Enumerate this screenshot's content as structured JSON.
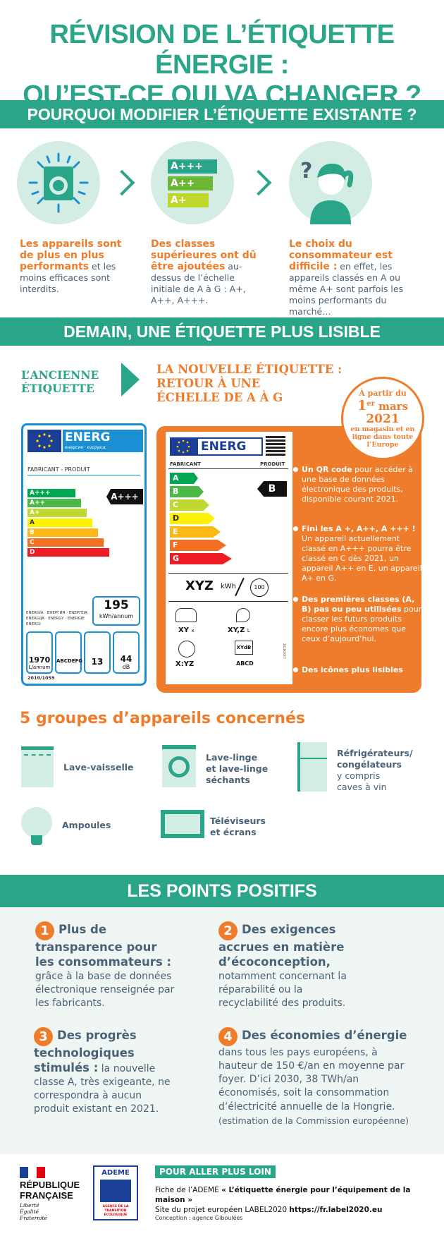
{
  "title": {
    "line1": "RÉVISION DE L’ÉTIQUETTE ÉNERGIE :",
    "line2": "QU’EST-CE QUI VA CHANGER ?"
  },
  "section1": {
    "heading": "POURQUOI MODIFIER L’ÉTIQUETTE EXISTANTE ?",
    "col1": {
      "strong": "Les appareils sont de plus en plus performants",
      "text": " et les moins efficaces sont interdits."
    },
    "col2": {
      "strong": "Des classes supérieures ont dû être ajoutées",
      "text": " au-dessus de l’échelle initiale de A à G : A+, A++, A+++."
    },
    "col3": {
      "strong": "Le choix du consommateur est difficile :",
      "text": " en effet, les appareils classés en A ou même A+ sont parfois les moins performants du marché…"
    },
    "classes": [
      "A+++",
      "A++",
      "A+"
    ]
  },
  "section2": {
    "heading": "DEMAIN, UNE ÉTIQUETTE PLUS LISIBLE",
    "old_label": {
      "l1": "L’ANCIENNE",
      "l2": "ÉTIQUETTE"
    },
    "new_label": {
      "l1": "LA NOUVELLE ÉTIQUETTE :",
      "l2": "RETOUR À UNE",
      "l3": "ÉCHELLE DE A À G"
    },
    "badge": {
      "l1": "À partir du",
      "day": "1",
      "sup": "er",
      "month": "mars",
      "year": "2021",
      "l3": "en magasin et en",
      "l4": "ligne dans toute",
      "l5": "l’Europe"
    },
    "old": {
      "energ": "ENERG",
      "subtitle": "енергия · ενεργεια",
      "lang": [
        "Y",
        "IJA",
        "IE",
        "IA"
      ],
      "maker": "FABRICANT - PRODUIT",
      "classes": [
        "A+++",
        "A++",
        "A+",
        "A",
        "B",
        "C",
        "D"
      ],
      "rating": "A+++",
      "langs": "ENERGIA · ЕНЕРГИЯ · ΕΝΕΡΓΕΙΑ ENERGIJA · ENERGY · ENERGIE ENERGI",
      "kwh": "195",
      "kwh_unit": "kWh/annum",
      "icons": [
        {
          "v": "1970",
          "u": "L/annum"
        },
        {
          "v": "ABCDEFG",
          "u": ""
        },
        {
          "v": "13",
          "u": ""
        },
        {
          "v": "44",
          "u": "dB"
        }
      ],
      "reg": "2010/1059"
    },
    "new": {
      "energ": "ENERG",
      "maker": "FABRICANT",
      "product": "PRODUIT",
      "classes": [
        "A",
        "B",
        "C",
        "D",
        "E",
        "F",
        "G"
      ],
      "rating": "B",
      "kwh": "XYZ",
      "kwh_unit": "kWh",
      "cycle": "100",
      "icons": [
        "XY",
        "XY,Z",
        "X:YZ",
        "ABCD"
      ],
      "icon_units": [
        "x",
        "L",
        "",
        "dB"
      ],
      "reg": "2019/2017"
    },
    "bullets": [
      {
        "strong": "Un QR code",
        "text": " pour accéder à une base de données électronique des produits, disponible courant 2021."
      },
      {
        "strong": "Fini les A +, A++, A +++ !",
        "text": " Un appareil actuellement classé en A+++ pourra être classé en C dès 2021, un appareil A++ en E, un appareil A+ en G."
      },
      {
        "strong": "Des premières classes (A, B) pas ou peu utilisées",
        "text": " pour classer les futurs produits encore plus économes que ceux d’aujourd’hui."
      },
      {
        "strong": "Des icônes plus lisibles",
        "text": ""
      }
    ]
  },
  "section3": {
    "heading": "5 groupes d’appareils concernés",
    "g1": "Lave-vaisselle",
    "g2a": "Lave-linge",
    "g2b": "et lave-linge",
    "g2c": "séchants",
    "g3a": "Réfrigérateurs/",
    "g3b": "congélateurs",
    "g3c": "y compris",
    "g3d": "caves à vin",
    "g4": "Ampoules",
    "g5a": "Téléviseurs",
    "g5b": "et écrans"
  },
  "section4": {
    "heading": "LES POINTS POSITIFS",
    "p1": {
      "n": "1",
      "strong": "Plus de transparence pour les consommateurs :",
      "text": " grâce à la base de données électronique renseignée par les fabricants."
    },
    "p2": {
      "n": "2",
      "strong": "Des exigences accrues en matière d’écoconception,",
      "text": " notamment concernant la réparabilité  ou la recyclabilité des produits."
    },
    "p3": {
      "n": "3",
      "strong": "Des progrès technologiques stimulés :",
      "text": " la nouvelle classe A, très exigeante, ne correspondra à aucun produit existant en 2021."
    },
    "p4": {
      "n": "4",
      "strong": "Des économies d’énergie",
      "text": " dans tous les pays européens, à hauteur de 150 €/an en moyenne par foyer. D’ici 2030, 38 TWh/an économisés, soit la consommation d’électricité annuelle de la Hongrie.",
      "note": " (estimation de la Commission européenne)"
    }
  },
  "footer": {
    "rf1": "RÉPUBLIQUE",
    "rf2": "FRANÇAISE",
    "motto1": "Liberté",
    "motto2": "Égalité",
    "motto3": "Fraternité",
    "ademe": "ADEME",
    "ademe_sub": "AGENCE DE LA TRANSITION ÉCOLOGIQUE",
    "more": "POUR ALLER PLUS LOIN",
    "line1a": "Fiche de l’ADEME ",
    "line1b": "« L’étiquette énergie pour l’équipement de la maison »",
    "line2a": "Site du projet européen LABEL2020 ",
    "line2b": "https://fr.label2020.eu",
    "credit": "Conception :  agence Giboulées"
  },
  "colors": {
    "teal": "#2aa58a",
    "orange": "#ef7c2a",
    "text": "#4a6278",
    "eu_blue": "#1b8fd3"
  }
}
